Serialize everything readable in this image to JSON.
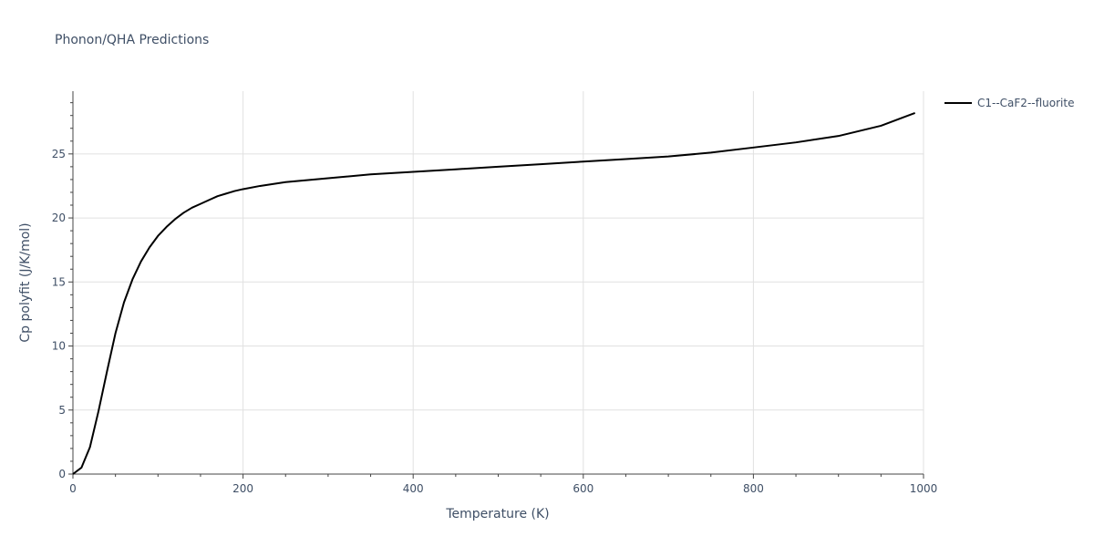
{
  "title": "Phonon/QHA Predictions",
  "chart_data": {
    "type": "line",
    "title": "Phonon/QHA Predictions",
    "xlabel": "Temperature (K)",
    "ylabel": "Cp polyfit (J/K/mol)",
    "xlim": [
      0,
      1000
    ],
    "ylim": [
      0,
      29.9
    ],
    "xticks": [
      0,
      200,
      400,
      600,
      800,
      1000
    ],
    "yticks": [
      0,
      5,
      10,
      15,
      20,
      25
    ],
    "grid": true,
    "legend_position": "top-right",
    "series": [
      {
        "name": "C1--CaF2--fluorite",
        "color": "#000000",
        "x": [
          0,
          10,
          20,
          30,
          40,
          50,
          60,
          70,
          80,
          90,
          100,
          110,
          120,
          130,
          140,
          150,
          160,
          170,
          180,
          190,
          200,
          220,
          250,
          300,
          350,
          400,
          450,
          500,
          550,
          600,
          650,
          700,
          750,
          800,
          850,
          900,
          950,
          990
        ],
        "values": [
          0,
          0.5,
          2.1,
          4.9,
          8.0,
          11.0,
          13.4,
          15.2,
          16.6,
          17.7,
          18.6,
          19.3,
          19.9,
          20.4,
          20.8,
          21.1,
          21.4,
          21.7,
          21.9,
          22.1,
          22.25,
          22.5,
          22.8,
          23.1,
          23.4,
          23.6,
          23.8,
          24.0,
          24.2,
          24.4,
          24.6,
          24.8,
          25.1,
          25.5,
          25.9,
          26.4,
          27.2,
          28.2
        ]
      }
    ]
  }
}
